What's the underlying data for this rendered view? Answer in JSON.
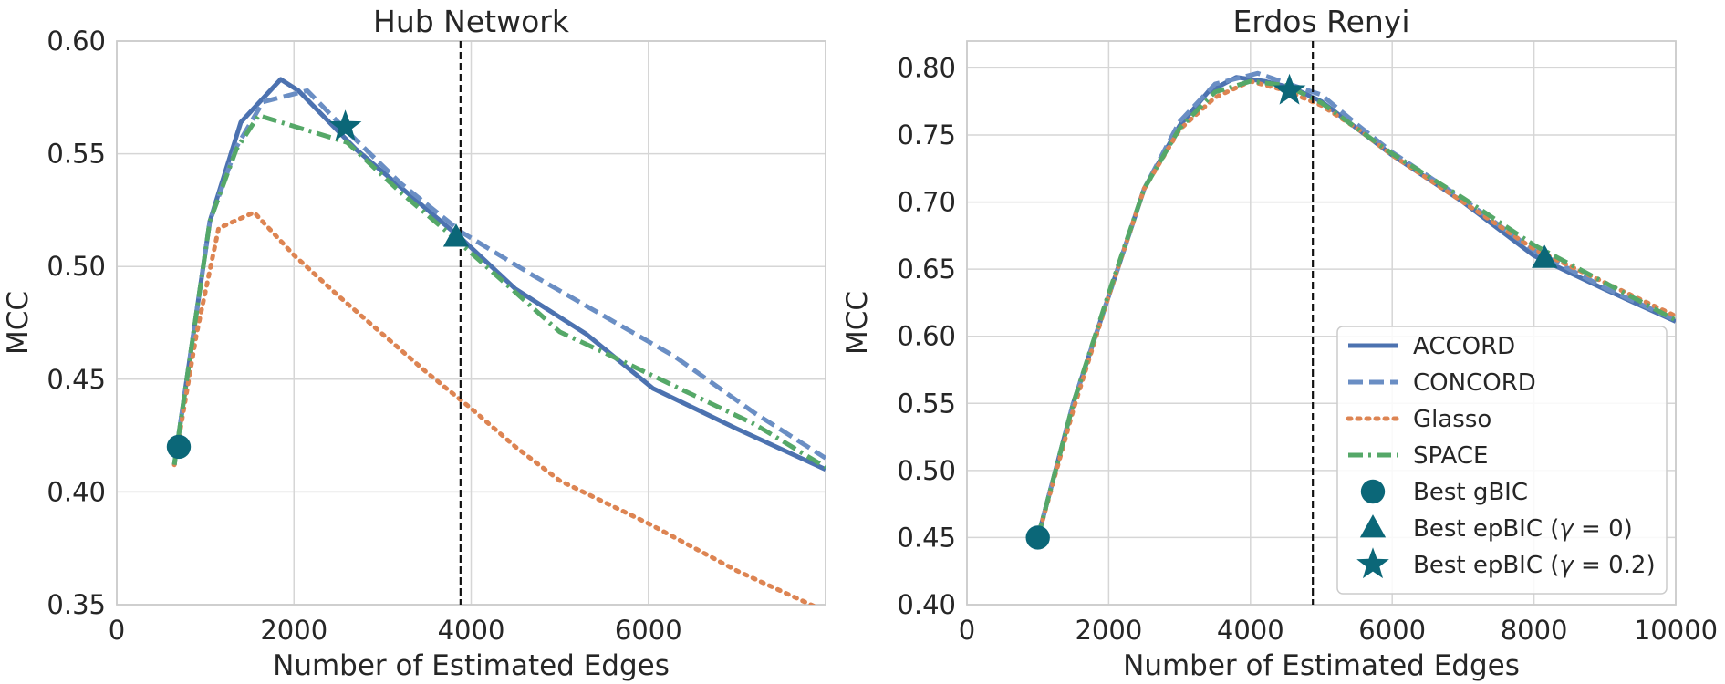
{
  "chart_data": [
    {
      "type": "line",
      "title": "Hub Network",
      "xlabel": "Number of Estimated Edges",
      "ylabel": "MCC",
      "xlim": [
        0,
        8000
      ],
      "ylim": [
        0.35,
        0.6
      ],
      "xticks": [
        0,
        2000,
        4000,
        6000
      ],
      "xtick_labels": [
        "0",
        "2000",
        "4000",
        "6000"
      ],
      "yticks": [
        0.35,
        0.4,
        0.45,
        0.5,
        0.55,
        0.6
      ],
      "ytick_labels": [
        "0.35",
        "0.40",
        "0.45",
        "0.50",
        "0.55",
        "0.60"
      ],
      "grid": true,
      "vline": 3880,
      "series": [
        {
          "name": "ACCORD",
          "style": "solid",
          "color": "#4c72b0",
          "x": [
            650,
            1050,
            1400,
            1850,
            2050,
            2700,
            3300,
            3900,
            4500,
            5300,
            6050,
            7000,
            8000
          ],
          "y": [
            0.412,
            0.52,
            0.564,
            0.583,
            0.578,
            0.552,
            0.532,
            0.512,
            0.49,
            0.47,
            0.446,
            0.428,
            0.41
          ]
        },
        {
          "name": "CONCORD",
          "style": "dashed",
          "color": "#6a8ec4",
          "x": [
            650,
            1050,
            1350,
            1650,
            2150,
            2600,
            3200,
            3900,
            4700,
            5500,
            6300,
            7200,
            8000
          ],
          "y": [
            0.412,
            0.52,
            0.553,
            0.573,
            0.578,
            0.56,
            0.537,
            0.515,
            0.496,
            0.478,
            0.46,
            0.435,
            0.415
          ]
        },
        {
          "name": "Glasso",
          "style": "dotted",
          "color": "#dd8452",
          "x": [
            650,
            900,
            1150,
            1550,
            2000,
            2500,
            3000,
            3500,
            4000,
            4500,
            5000,
            6000,
            7000,
            8000
          ],
          "y": [
            0.412,
            0.47,
            0.517,
            0.524,
            0.505,
            0.487,
            0.47,
            0.453,
            0.437,
            0.42,
            0.405,
            0.386,
            0.365,
            0.347
          ]
        },
        {
          "name": "SPACE",
          "style": "dashdot",
          "color": "#55a868",
          "x": [
            650,
            1050,
            1350,
            1600,
            2100,
            2600,
            3200,
            3800,
            4400,
            5000,
            5600,
            6400,
            7200,
            8000
          ],
          "y": [
            0.412,
            0.52,
            0.552,
            0.567,
            0.561,
            0.555,
            0.533,
            0.513,
            0.492,
            0.471,
            0.46,
            0.445,
            0.43,
            0.411
          ]
        }
      ],
      "markers": [
        {
          "name": "Best gBIC",
          "shape": "circle",
          "x": 700,
          "y": 0.42
        },
        {
          "name": "Best epBIC (γ=0)",
          "shape": "triangle",
          "x": 3830,
          "y": 0.513
        },
        {
          "name": "Best epBIC (γ=0.2)",
          "shape": "star",
          "x": 2580,
          "y": 0.562
        }
      ]
    },
    {
      "type": "line",
      "title": "Erdos Renyi",
      "xlabel": "Number of Estimated Edges",
      "ylabel": "MCC",
      "xlim": [
        0,
        10000
      ],
      "ylim": [
        0.4,
        0.82
      ],
      "xticks": [
        0,
        2000,
        4000,
        6000,
        8000,
        10000
      ],
      "xtick_labels": [
        "0",
        "2000",
        "4000",
        "6000",
        "8000",
        "10000"
      ],
      "yticks": [
        0.4,
        0.45,
        0.5,
        0.55,
        0.6,
        0.65,
        0.7,
        0.75,
        0.8
      ],
      "ytick_labels": [
        "0.40",
        "0.45",
        "0.50",
        "0.55",
        "0.60",
        "0.65",
        "0.70",
        "0.75",
        "0.80"
      ],
      "grid": true,
      "vline": 4880,
      "series": [
        {
          "name": "ACCORD",
          "style": "solid",
          "color": "#4c72b0",
          "x": [
            1000,
            1500,
            2000,
            2500,
            3000,
            3400,
            3800,
            4200,
            4600,
            5000,
            5500,
            6000,
            7000,
            8000,
            9000,
            10000
          ],
          "y": [
            0.45,
            0.55,
            0.63,
            0.71,
            0.757,
            0.782,
            0.793,
            0.79,
            0.785,
            0.775,
            0.755,
            0.735,
            0.7,
            0.66,
            0.635,
            0.611
          ]
        },
        {
          "name": "CONCORD",
          "style": "dashed",
          "color": "#6a8ec4",
          "x": [
            1000,
            1500,
            2000,
            2500,
            3000,
            3500,
            4100,
            4600,
            5000,
            5500,
            6000,
            7000,
            8000,
            9000,
            10000
          ],
          "y": [
            0.45,
            0.55,
            0.63,
            0.71,
            0.76,
            0.788,
            0.796,
            0.787,
            0.78,
            0.758,
            0.737,
            0.702,
            0.664,
            0.636,
            0.612
          ]
        },
        {
          "name": "Glasso",
          "style": "dotted",
          "color": "#dd8452",
          "x": [
            1000,
            1500,
            2000,
            2500,
            3000,
            3500,
            4000,
            4500,
            5000,
            5500,
            6000,
            7000,
            8000,
            9000,
            10000
          ],
          "y": [
            0.45,
            0.545,
            0.63,
            0.71,
            0.754,
            0.778,
            0.79,
            0.783,
            0.772,
            0.755,
            0.735,
            0.7,
            0.665,
            0.64,
            0.615
          ]
        },
        {
          "name": "SPACE",
          "style": "dashdot",
          "color": "#55a868",
          "x": [
            1000,
            1500,
            2000,
            2500,
            3000,
            3500,
            4000,
            4500,
            5000,
            5500,
            6000,
            7000,
            8000,
            9000,
            10000
          ],
          "y": [
            0.45,
            0.55,
            0.632,
            0.71,
            0.755,
            0.782,
            0.79,
            0.787,
            0.774,
            0.755,
            0.736,
            0.703,
            0.668,
            0.64,
            0.612
          ]
        }
      ],
      "markers": [
        {
          "name": "Best gBIC",
          "shape": "circle",
          "x": 1000,
          "y": 0.45
        },
        {
          "name": "Best epBIC (γ=0)",
          "shape": "triangle",
          "x": 8150,
          "y": 0.658
        },
        {
          "name": "Best epBIC (γ=0.2)",
          "shape": "star",
          "x": 4550,
          "y": 0.783
        }
      ],
      "legend": {
        "placement": "lower-right",
        "entries": [
          {
            "label": "ACCORD",
            "kind": "line",
            "style": "solid",
            "color": "#4c72b0"
          },
          {
            "label": "CONCORD",
            "kind": "line",
            "style": "dashed",
            "color": "#6a8ec4"
          },
          {
            "label": "Glasso",
            "kind": "line",
            "style": "dotted",
            "color": "#dd8452"
          },
          {
            "label": "SPACE",
            "kind": "line",
            "style": "dashdot",
            "color": "#55a868"
          },
          {
            "label": "Best gBIC",
            "kind": "marker",
            "shape": "circle"
          },
          {
            "label": "Best epBIC (",
            "italic": "γ",
            "suffix": " = 0)",
            "kind": "marker",
            "shape": "triangle"
          },
          {
            "label": "Best epBIC (",
            "italic": "γ",
            "suffix": " = 0.2)",
            "kind": "marker",
            "shape": "star"
          }
        ]
      }
    }
  ],
  "colors": {
    "marker": "#0b6778",
    "grid": "#d6d6d6",
    "axis": "#cccccc",
    "vline": "#111111"
  }
}
